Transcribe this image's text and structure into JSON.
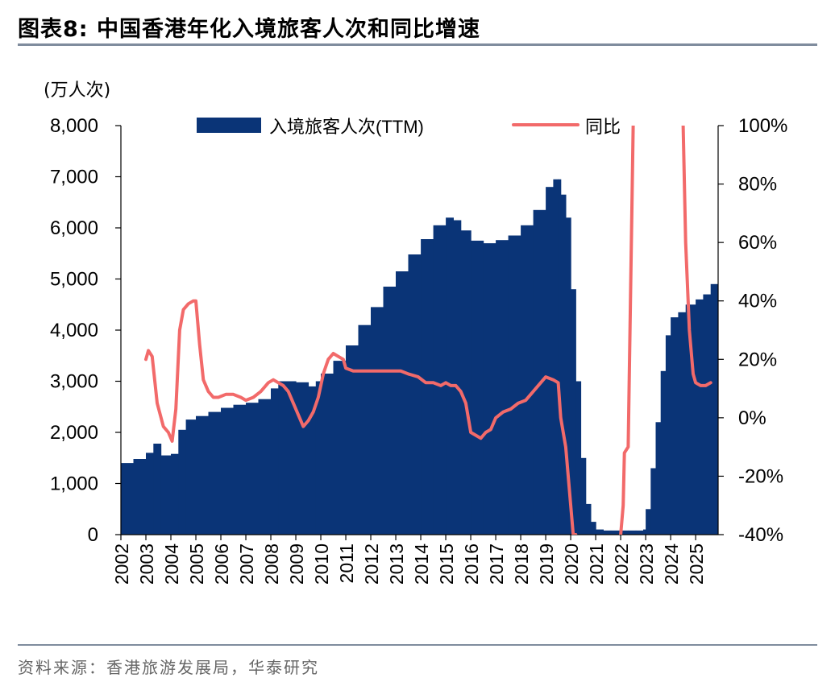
{
  "figure": {
    "title": "图表8:  中国香港年化入境旅客人次和同比增速",
    "unit_label": "(万人次)",
    "source": "资料来源：香港旅游发展局，华泰研究"
  },
  "colors": {
    "bar": "#0a3477",
    "line": "#f26a6a",
    "axis": "#000000",
    "rule": "#7f8c9d"
  },
  "chart_data": {
    "type": "bar",
    "legend": {
      "position": "top",
      "entries": [
        "入境旅客人次(TTM)",
        "同比"
      ]
    },
    "grid": false,
    "x_ticks": [
      "2002",
      "2003",
      "2004",
      "2005",
      "2006",
      "2007",
      "2008",
      "2009",
      "2010",
      "2011",
      "2012",
      "2013",
      "2014",
      "2015",
      "2016",
      "2017",
      "2018",
      "2019",
      "2020",
      "2021",
      "2022",
      "2023",
      "2024",
      "2025"
    ],
    "y_left": {
      "label": "(万人次)",
      "range": [
        0,
        8000
      ],
      "ticks": [
        "0",
        "1,000",
        "2,000",
        "3,000",
        "4,000",
        "5,000",
        "6,000",
        "7,000",
        "8,000"
      ]
    },
    "y_right": {
      "range": [
        -40,
        100
      ],
      "ticks": [
        "-40%",
        "-20%",
        "0%",
        "20%",
        "40%",
        "60%",
        "80%",
        "100%"
      ]
    },
    "series": [
      {
        "name": "入境旅客人次(TTM)",
        "type": "bar",
        "axis": "left",
        "x": [
          2002.0,
          2002.5,
          2003.0,
          2003.3,
          2003.6,
          2004.0,
          2004.3,
          2004.6,
          2005.0,
          2005.5,
          2006.0,
          2006.5,
          2007.0,
          2007.5,
          2008.0,
          2008.3,
          2008.7,
          2009.0,
          2009.5,
          2009.8,
          2010.0,
          2010.5,
          2011.0,
          2011.5,
          2012.0,
          2012.5,
          2013.0,
          2013.5,
          2014.0,
          2014.5,
          2015.0,
          2015.3,
          2015.6,
          2016.0,
          2016.5,
          2017.0,
          2017.5,
          2018.0,
          2018.5,
          2019.0,
          2019.3,
          2019.5,
          2019.6,
          2019.8,
          2020.0,
          2020.2,
          2020.4,
          2020.6,
          2020.8,
          2021.0,
          2021.3,
          2021.6,
          2022.0,
          2022.3,
          2022.6,
          2022.9,
          2023.0,
          2023.2,
          2023.4,
          2023.6,
          2023.8,
          2024.0,
          2024.3,
          2024.6,
          2025.0,
          2025.3,
          2025.6
        ],
        "values": [
          1400,
          1480,
          1600,
          1780,
          1550,
          1580,
          2050,
          2250,
          2320,
          2400,
          2480,
          2540,
          2580,
          2650,
          2860,
          3000,
          3000,
          2980,
          2900,
          3000,
          3150,
          3400,
          3700,
          4100,
          4450,
          4850,
          5150,
          5480,
          5780,
          6050,
          6200,
          6150,
          5950,
          5750,
          5700,
          5760,
          5850,
          6050,
          6350,
          6800,
          6950,
          6950,
          6650,
          6200,
          4800,
          3000,
          1500,
          600,
          250,
          100,
          80,
          80,
          80,
          80,
          80,
          100,
          500,
          1300,
          2200,
          3200,
          3900,
          4250,
          4350,
          4500,
          4600,
          4700,
          4900
        ]
      },
      {
        "name": "同比",
        "type": "line",
        "axis": "right",
        "x": [
          2003.0,
          2003.1,
          2003.25,
          2003.45,
          2003.7,
          2003.9,
          2004.05,
          2004.2,
          2004.35,
          2004.5,
          2004.7,
          2004.9,
          2005.0,
          2005.15,
          2005.3,
          2005.5,
          2005.7,
          2005.9,
          2006.2,
          2006.5,
          2006.8,
          2007.0,
          2007.3,
          2007.6,
          2007.9,
          2008.1,
          2008.3,
          2008.5,
          2008.7,
          2008.9,
          2009.1,
          2009.3,
          2009.5,
          2009.7,
          2009.9,
          2010.1,
          2010.3,
          2010.5,
          2010.7,
          2010.9,
          2011.0,
          2011.3,
          2011.6,
          2011.9,
          2012.2,
          2012.5,
          2012.9,
          2013.2,
          2013.5,
          2013.9,
          2014.2,
          2014.5,
          2014.8,
          2015.0,
          2015.2,
          2015.4,
          2015.6,
          2015.8,
          2016.0,
          2016.2,
          2016.4,
          2016.6,
          2016.8,
          2017.0,
          2017.3,
          2017.6,
          2017.9,
          2018.2,
          2018.5,
          2018.8,
          2019.0,
          2019.3,
          2019.5,
          2019.6,
          2019.8,
          2020.0,
          2020.1,
          2020.2,
          2022.0,
          2022.1,
          2022.15,
          2022.3,
          2022.5,
          2024.5,
          2024.6,
          2024.75,
          2024.9,
          2025.0,
          2025.2,
          2025.4,
          2025.6
        ],
        "values": [
          20,
          23,
          21,
          5,
          -3,
          -5,
          -8,
          3,
          30,
          37,
          39,
          40,
          40,
          25,
          13,
          9,
          7,
          7,
          8,
          8,
          7,
          6,
          7,
          9,
          12,
          13,
          12,
          11,
          9,
          5,
          1,
          -3,
          -1,
          2,
          7,
          15,
          20,
          22,
          21,
          20,
          17,
          16,
          16,
          16,
          16,
          16,
          16,
          16,
          15,
          14,
          12,
          12,
          11,
          12,
          11,
          11,
          9,
          5,
          -5,
          -6,
          -7,
          -5,
          -4,
          0,
          2,
          3,
          5,
          6,
          9,
          12,
          14,
          13,
          12,
          0,
          -10,
          -30,
          -40,
          -40,
          -40,
          -30,
          -12,
          -10,
          100,
          100,
          60,
          30,
          15,
          12,
          11,
          11,
          12
        ]
      }
    ]
  }
}
